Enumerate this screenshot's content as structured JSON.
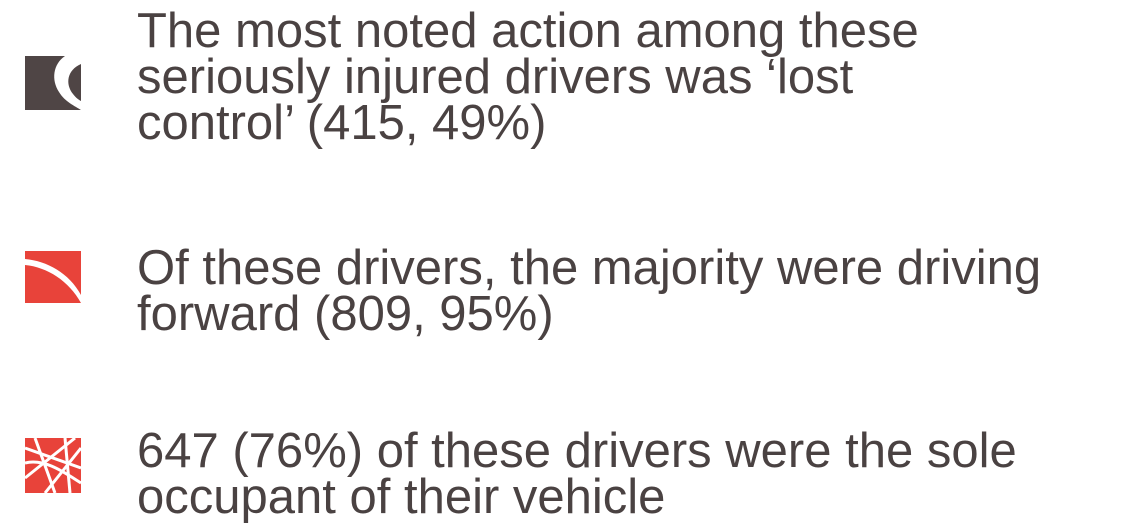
{
  "bullets": [
    {
      "lines": [
        "The most noted action among these",
        "seriously injured drivers was ‘lost",
        "control’ (415, 49%)"
      ]
    },
    {
      "lines": [
        "Of these drivers, the majority were driving",
        "forward (809, 95%)"
      ]
    },
    {
      "lines": [
        "647 (76%) of these drivers were the sole",
        "occupant of their vehicle"
      ]
    }
  ]
}
